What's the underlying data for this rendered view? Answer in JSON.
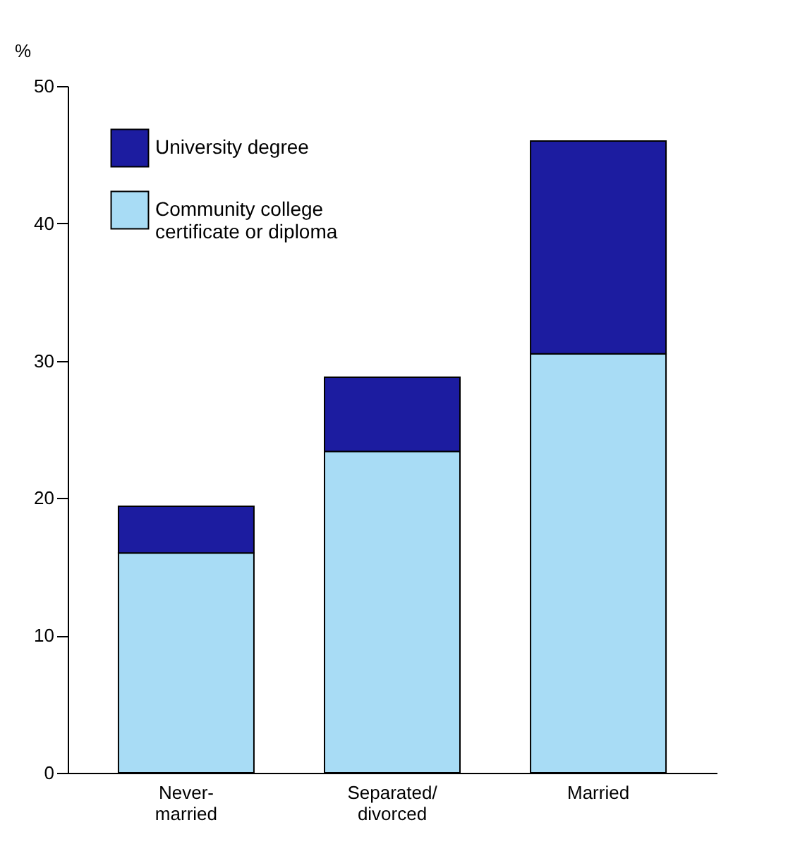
{
  "chart_data": {
    "type": "bar",
    "ylabel": "%",
    "categories": [
      "Never-\nmarried",
      "Separated/\ndivorced",
      "Married"
    ],
    "series": [
      {
        "name": "Community college\ncertificate or diploma",
        "color": "#a8dcf5",
        "values": [
          16.0,
          23.4,
          30.5
        ]
      },
      {
        "name": "University degree",
        "color": "#1c1ca0",
        "values": [
          3.4,
          5.4,
          15.5
        ]
      }
    ],
    "stacked": true,
    "ylim": [
      0,
      50
    ],
    "yticks": [
      0,
      10,
      20,
      30,
      40,
      50
    ],
    "grid": false,
    "legend": "top left"
  }
}
